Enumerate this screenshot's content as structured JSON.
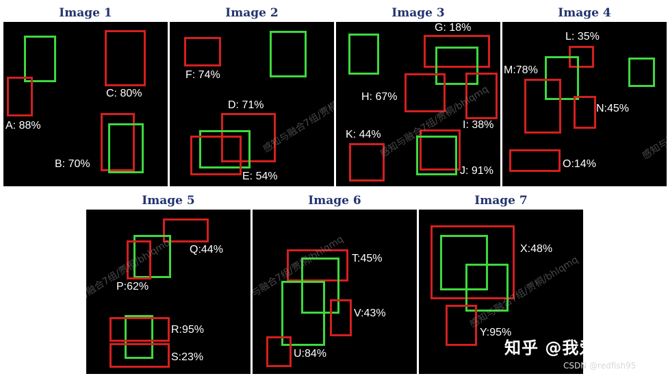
{
  "panels": [
    {
      "id": "1",
      "title": "Image 1",
      "labels": {
        "a": "A: 88%",
        "b": "B: 70%",
        "c": "C: 80%"
      }
    },
    {
      "id": "2",
      "title": "Image 2",
      "labels": {
        "d": "D: 71%",
        "e": "E: 54%",
        "f": "F: 74%"
      }
    },
    {
      "id": "3",
      "title": "Image 3",
      "labels": {
        "g": "G: 18%",
        "h": "H: 67%",
        "i": "I: 38%",
        "j": "J: 91%",
        "k": "K: 44%"
      }
    },
    {
      "id": "4",
      "title": "Image 4",
      "labels": {
        "l": "L: 35%",
        "m": "M:78%",
        "n": "N:45%",
        "o": "O:14%"
      }
    },
    {
      "id": "5",
      "title": "Image 5",
      "labels": {
        "p": "P:62%",
        "q": "Q:44%",
        "r": "R:95%",
        "s": "S:23%"
      }
    },
    {
      "id": "6",
      "title": "Image 6",
      "labels": {
        "t": "T:45%",
        "u": "U:84%",
        "v": "V:43%"
      }
    },
    {
      "id": "7",
      "title": "Image 7",
      "labels": {
        "x": "X:48%",
        "y": "Y:95%"
      }
    }
  ],
  "legend_colors": {
    "predicted": "#d51f1f",
    "ground_truth": "#3fd83f"
  },
  "watermark": "感知与融合7组/贾桐/bhlqmq",
  "brand": "知乎 @我爱馒头",
  "credit": "CSDN @redfish95"
}
